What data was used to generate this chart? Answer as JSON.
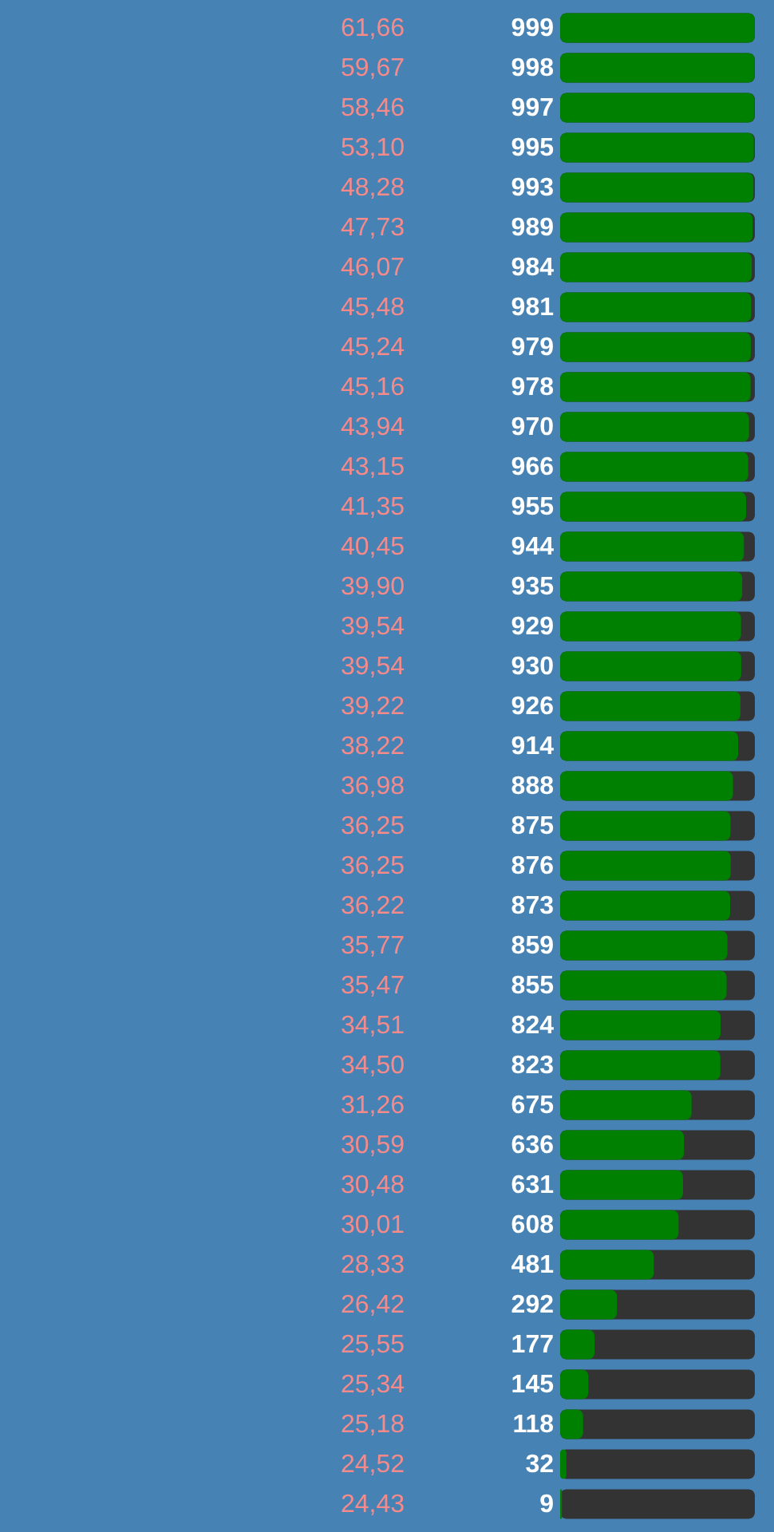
{
  "chart_data": {
    "type": "bar",
    "orientation": "horizontal",
    "categories": [
      "61,66",
      "59,67",
      "58,46",
      "53,10",
      "48,28",
      "47,73",
      "46,07",
      "45,48",
      "45,24",
      "45,16",
      "43,94",
      "43,15",
      "41,35",
      "40,45",
      "39,90",
      "39,54",
      "39,54",
      "39,22",
      "38,22",
      "36,98",
      "36,25",
      "36,25",
      "36,22",
      "35,77",
      "35,47",
      "34,51",
      "34,50",
      "31,26",
      "30,59",
      "30,48",
      "30,01",
      "28,33",
      "26,42",
      "25,55",
      "25,34",
      "25,18",
      "24,52",
      "24,43"
    ],
    "values": [
      999,
      998,
      997,
      995,
      993,
      989,
      984,
      981,
      979,
      978,
      970,
      966,
      955,
      944,
      935,
      929,
      930,
      926,
      914,
      888,
      875,
      876,
      873,
      859,
      855,
      824,
      823,
      675,
      636,
      631,
      608,
      481,
      292,
      177,
      145,
      118,
      32,
      9
    ],
    "color": "#008000",
    "xlim": [
      0,
      1000
    ],
    "data_labels": true,
    "tick_labels": "y",
    "grid": false
  }
}
